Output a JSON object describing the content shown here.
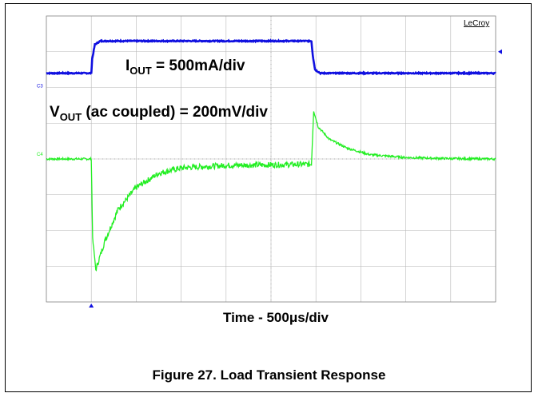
{
  "brand": "LeCroy",
  "channels": [
    {
      "name": "C3",
      "color": "#1010e0"
    },
    {
      "name": "C4",
      "color": "#22ee22"
    }
  ],
  "labels": {
    "iout": {
      "main": "I",
      "sub": "OUT",
      "rest": " = 500mA/div"
    },
    "vout": {
      "main": "V",
      "sub": "OUT",
      "rest": " (ac coupled) = 200mV/div"
    },
    "time": "Time - 500μs/div"
  },
  "caption": "Figure 27. Load Transient Response",
  "chart_data": {
    "type": "line",
    "x_unit": "div",
    "y_unit": "div",
    "x_range": [
      0,
      10
    ],
    "y_range": [
      -4,
      4
    ],
    "grid": true,
    "series": [
      {
        "name": "C3",
        "color": "#1010e0",
        "x": [
          0,
          1,
          1.02,
          1.08,
          1.2,
          5.9,
          5.93,
          5.98,
          6.1,
          10
        ],
        "values": [
          2.4,
          2.4,
          2.8,
          3.2,
          3.3,
          3.3,
          2.9,
          2.5,
          2.4,
          2.4
        ]
      },
      {
        "name": "C4",
        "color": "#22ee22",
        "x": [
          0,
          1,
          1.03,
          1.1,
          1.3,
          1.6,
          2,
          2.5,
          3,
          4,
          5.9,
          5.95,
          6.05,
          6.3,
          6.7,
          7.2,
          8,
          9,
          10
        ],
        "values": [
          0,
          0,
          -2.2,
          -3.1,
          -2.3,
          -1.4,
          -0.8,
          -0.4,
          -0.25,
          -0.18,
          -0.15,
          1.35,
          0.9,
          0.55,
          0.3,
          0.12,
          0.04,
          0.01,
          0
        ]
      }
    ]
  }
}
